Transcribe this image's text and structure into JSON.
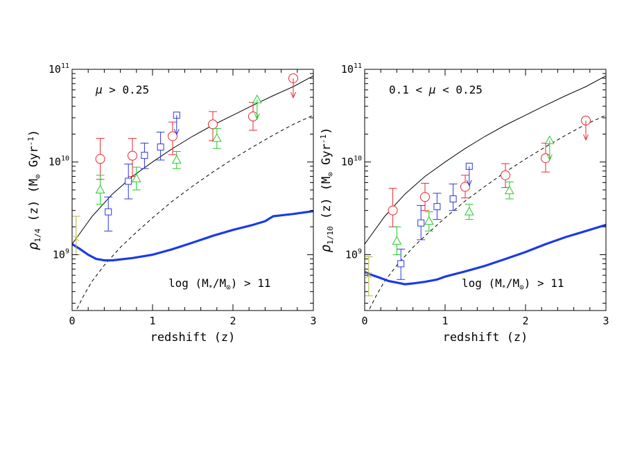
{
  "colors": {
    "red": "#e8262d",
    "blue": "#2b35e0",
    "green": "#22c926",
    "olive": "#b3b33a",
    "model": "#1a3be6",
    "black": "#000000"
  },
  "chart_data": [
    {
      "type": "scatter",
      "panel": "left",
      "xlabel": "redshift (z)",
      "ylabel": "ρ1/4 (z) (M⊙ Gyr⁻¹)",
      "ylabel_parts": {
        "rho": "ρ",
        "sub": "1/4",
        "rest": " (z)  (M",
        "sun": "⊙",
        "gyr": " Gyr",
        "exp": "-1",
        "close": ")"
      },
      "xlim": [
        0,
        3
      ],
      "ylog": true,
      "ylim": [
        250000000,
        100000000000
      ],
      "xticks": [
        0,
        1,
        2,
        3
      ],
      "yticks": [
        {
          "value": 1000000000,
          "base": "10",
          "exp": "9"
        },
        {
          "value": 10000000000,
          "base": "10",
          "exp": "10"
        },
        {
          "value": 100000000000,
          "base": "10",
          "exp": "11"
        }
      ],
      "annotation_top": {
        "mu": "μ",
        "text": " > 0.25"
      },
      "annotation_bottom": {
        "pre": "log (M",
        "sub1": "*",
        "mid": "/M",
        "sub2": "⊙",
        "post": ") > 11"
      },
      "curve_solid": {
        "x": [
          0,
          0.25,
          0.5,
          0.75,
          1.0,
          1.25,
          1.5,
          1.75,
          2.0,
          2.25,
          2.5,
          2.75,
          3.0
        ],
        "y": [
          1300000000,
          2600000000,
          4500000000,
          7000000000,
          10000000000,
          14000000000,
          19000000000,
          25000000000,
          32000000000,
          41000000000,
          52000000000,
          65000000000,
          85000000000
        ]
      },
      "curve_dashed": {
        "x": [
          0.06,
          0.15,
          0.25,
          0.4,
          0.6,
          0.8,
          1.0,
          1.25,
          1.5,
          1.75,
          2.0,
          2.25,
          2.5,
          2.75,
          3.0
        ],
        "y": [
          260000000,
          370000000,
          520000000,
          770000000,
          1200000000,
          1750000000,
          2500000000,
          3800000000,
          5500000000,
          7800000000,
          10800000000,
          14600000000,
          19500000000,
          25500000000,
          32000000000
        ]
      },
      "model": {
        "x": [
          0,
          0.1,
          0.2,
          0.3,
          0.4,
          0.5,
          0.75,
          1.0,
          1.25,
          1.5,
          1.75,
          2.0,
          2.25,
          2.4,
          2.5,
          2.75,
          3.0
        ],
        "y": [
          1300000000,
          1150000000,
          1000000000,
          900000000,
          870000000,
          870000000,
          920000000,
          1000000000,
          1150000000,
          1350000000,
          1600000000,
          1850000000,
          2100000000,
          2300000000,
          2600000000,
          2750000000,
          2950000000
        ]
      },
      "series": [
        {
          "name": "circles",
          "marker": "circle",
          "color": "red",
          "x": [
            0.35,
            0.75,
            1.25,
            1.75,
            2.25
          ],
          "y": [
            10800000000,
            11700000000,
            19000000000,
            25500000000,
            31000000000
          ],
          "err_lo": [
            6500000000,
            7000000000,
            12000000000,
            17000000000,
            22000000000
          ],
          "err_hi": [
            18000000000,
            18000000000,
            27000000000,
            35000000000,
            44000000000
          ]
        },
        {
          "name": "circle-limit",
          "marker": "circle-arrow",
          "color": "red",
          "x": [
            2.75
          ],
          "y": [
            80000000000
          ]
        },
        {
          "name": "squares",
          "marker": "square",
          "color": "blue",
          "x": [
            0.45,
            0.7,
            0.9,
            1.1
          ],
          "y": [
            2900000000,
            6200000000,
            11800000000,
            14500000000
          ],
          "err_lo": [
            1800000000,
            4000000000,
            8500000000,
            10500000000
          ],
          "err_hi": [
            4200000000,
            9500000000,
            16000000000,
            21000000000
          ]
        },
        {
          "name": "square-limit",
          "marker": "square-arrow",
          "color": "blue",
          "x": [
            1.3
          ],
          "y": [
            32000000000
          ]
        },
        {
          "name": "triangles",
          "marker": "triangle",
          "color": "green",
          "x": [
            0.35,
            0.8,
            1.3,
            1.8
          ],
          "y": [
            5000000000,
            6600000000,
            10500000000,
            18000000000
          ],
          "err_lo": [
            3500000000,
            5000000000,
            8500000000,
            14000000000
          ],
          "err_hi": [
            7200000000,
            8800000000,
            13000000000,
            23000000000
          ]
        },
        {
          "name": "triangle-limit",
          "marker": "triangle-arrow",
          "color": "green",
          "x": [
            2.3
          ],
          "y": [
            47000000000
          ]
        },
        {
          "name": "local",
          "marker": "cross",
          "color": "olive",
          "x": [
            0.05
          ],
          "y": [
            1500000000
          ],
          "err_lo": [
            1000000000
          ],
          "err_hi": [
            2600000000
          ]
        }
      ]
    },
    {
      "type": "scatter",
      "panel": "right",
      "xlabel": "redshift (z)",
      "ylabel": "ρ1/10 (z) (M⊙ Gyr⁻¹)",
      "ylabel_parts": {
        "rho": "ρ",
        "sub": "1/10",
        "rest": " (z)  (M",
        "sun": "⊙",
        "gyr": " Gyr",
        "exp": "-1",
        "close": ")"
      },
      "xlim": [
        0,
        3
      ],
      "ylog": true,
      "ylim": [
        250000000,
        100000000000
      ],
      "xticks": [
        0,
        1,
        2,
        3
      ],
      "yticks": [
        {
          "value": 1000000000,
          "base": "10",
          "exp": "9"
        },
        {
          "value": 10000000000,
          "base": "10",
          "exp": "10"
        },
        {
          "value": 100000000000,
          "base": "10",
          "exp": "11"
        }
      ],
      "annotation_top": {
        "pre": "0.1 < ",
        "mu": "μ",
        "text": " < 0.25"
      },
      "annotation_bottom": {
        "pre": "log (M",
        "sub1": "*",
        "mid": "/M",
        "sub2": "⊙",
        "post": ") > 11"
      },
      "curve_solid": {
        "x": [
          0,
          0.25,
          0.5,
          0.75,
          1.0,
          1.25,
          1.5,
          1.75,
          2.0,
          2.25,
          2.5,
          2.75,
          3.0
        ],
        "y": [
          1300000000,
          2600000000,
          4500000000,
          7000000000,
          10000000000,
          14000000000,
          19000000000,
          25000000000,
          32000000000,
          41000000000,
          52000000000,
          65000000000,
          85000000000
        ]
      },
      "curve_dashed": {
        "x": [
          0.06,
          0.15,
          0.25,
          0.4,
          0.6,
          0.8,
          1.0,
          1.25,
          1.5,
          1.75,
          2.0,
          2.25,
          2.5,
          2.75,
          3.0
        ],
        "y": [
          260000000,
          370000000,
          520000000,
          770000000,
          1200000000,
          1750000000,
          2500000000,
          3800000000,
          5500000000,
          7800000000,
          10800000000,
          14600000000,
          19500000000,
          25500000000,
          32000000000
        ]
      },
      "model": {
        "x": [
          0,
          0.1,
          0.2,
          0.3,
          0.4,
          0.5,
          0.6,
          0.75,
          0.9,
          1.0,
          1.25,
          1.5,
          1.75,
          2.0,
          2.25,
          2.5,
          2.75,
          3.0
        ],
        "y": [
          650000000,
          600000000,
          560000000,
          520000000,
          500000000,
          480000000,
          490000000,
          510000000,
          540000000,
          580000000,
          660000000,
          760000000,
          900000000,
          1070000000,
          1300000000,
          1550000000,
          1800000000,
          2100000000
        ]
      },
      "series": [
        {
          "name": "circles",
          "marker": "circle",
          "color": "red",
          "x": [
            0.35,
            0.75,
            1.25,
            1.75,
            2.25
          ],
          "y": [
            3000000000,
            4200000000,
            5400000000,
            7200000000,
            11000000000
          ],
          "err_lo": [
            2000000000,
            3000000000,
            4100000000,
            5300000000,
            7800000000
          ],
          "err_hi": [
            5200000000,
            5900000000,
            7200000000,
            9600000000,
            16000000000
          ]
        },
        {
          "name": "circle-limit",
          "marker": "circle-arrow",
          "color": "red",
          "x": [
            2.75
          ],
          "y": [
            28000000000
          ]
        },
        {
          "name": "squares",
          "marker": "square",
          "color": "blue",
          "x": [
            0.45,
            0.7,
            0.9,
            1.1
          ],
          "y": [
            800000000,
            2200000000,
            3300000000,
            4000000000
          ],
          "err_lo": [
            540000000,
            1450000000,
            2400000000,
            3000000000
          ],
          "err_hi": [
            1150000000,
            3400000000,
            4600000000,
            5800000000
          ]
        },
        {
          "name": "square-limit",
          "marker": "square-arrow",
          "color": "blue",
          "x": [
            1.3
          ],
          "y": [
            9000000000
          ]
        },
        {
          "name": "triangles",
          "marker": "triangle",
          "color": "green",
          "x": [
            0.4,
            0.8,
            1.3,
            1.8
          ],
          "y": [
            1400000000,
            2300000000,
            2900000000,
            4900000000
          ],
          "err_lo": [
            1000000000,
            1800000000,
            2400000000,
            4000000000
          ],
          "err_hi": [
            2000000000,
            2900000000,
            3500000000,
            6100000000
          ]
        },
        {
          "name": "triangle-limit",
          "marker": "triangle-arrow",
          "color": "green",
          "x": [
            2.3
          ],
          "y": [
            17000000000
          ]
        },
        {
          "name": "local",
          "marker": "cross",
          "color": "olive",
          "x": [
            0.05
          ],
          "y": [
            600000000
          ],
          "err_lo": [
            360000000
          ],
          "err_hi": [
            950000000
          ]
        }
      ]
    }
  ]
}
